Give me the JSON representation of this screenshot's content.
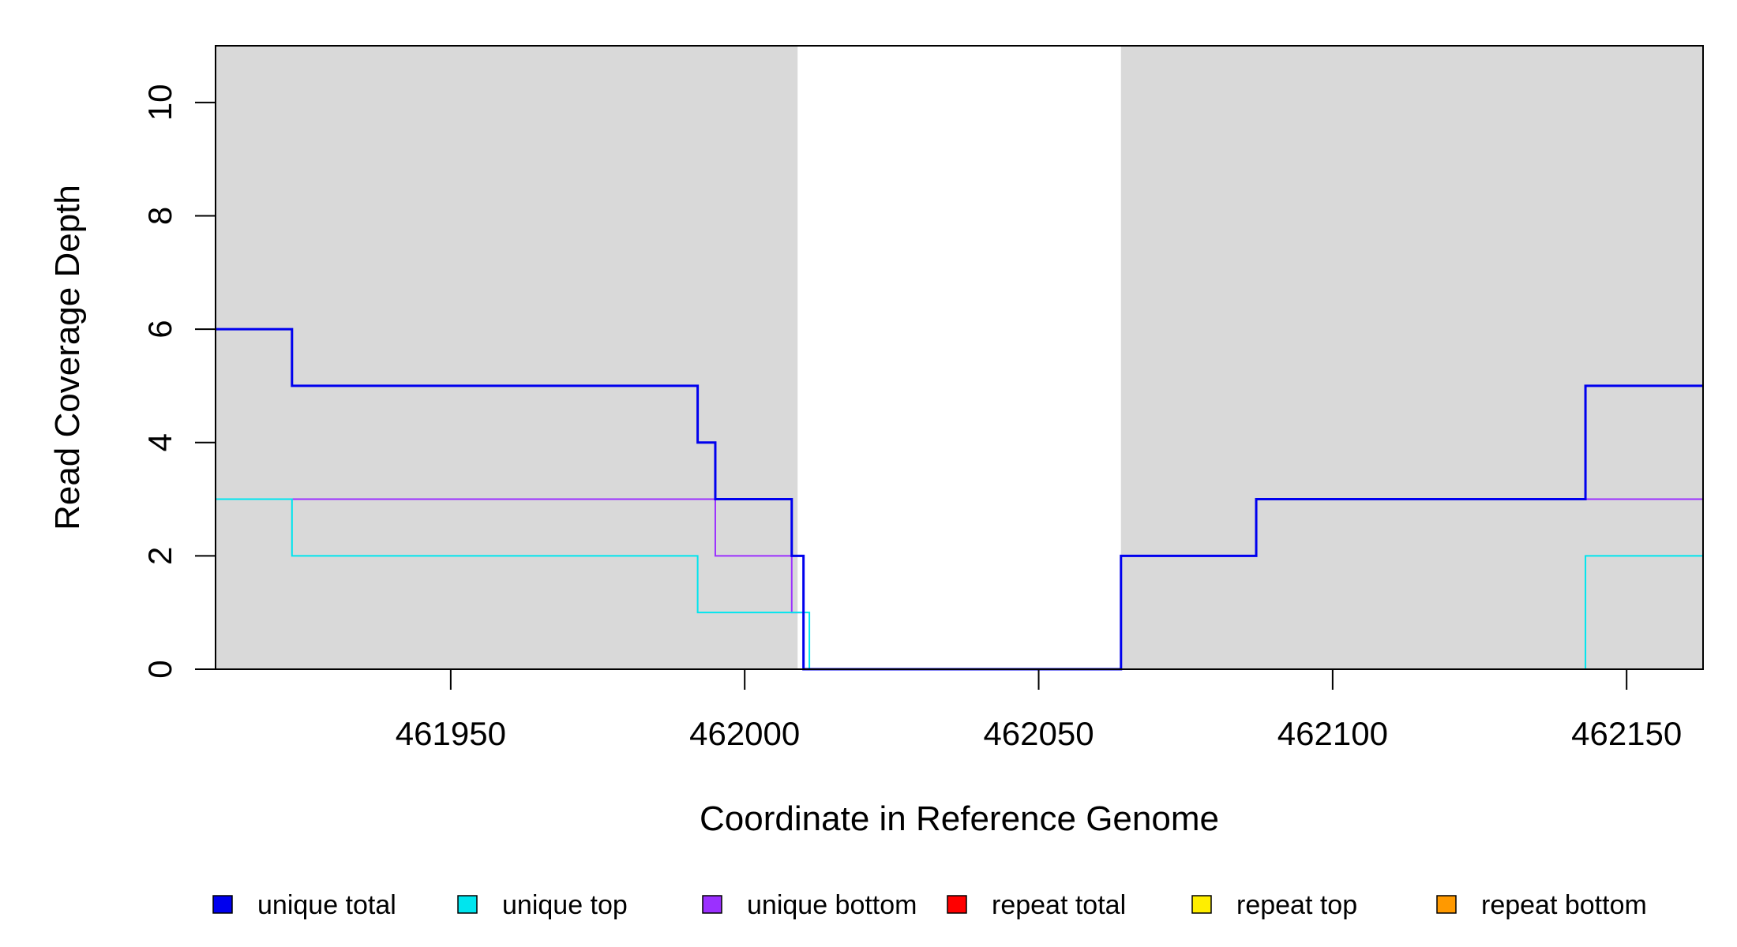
{
  "chart_data": {
    "type": "line",
    "xlabel": "Coordinate in Reference Genome",
    "ylabel": "Read Coverage Depth",
    "xlim": [
      461910,
      462163
    ],
    "ylim": [
      0,
      11
    ],
    "x_ticks": [
      461950,
      462000,
      462050,
      462100,
      462150
    ],
    "x_tick_labels": [
      "461950",
      "462000",
      "462050",
      "462100",
      "462150"
    ],
    "y_ticks": [
      0,
      2,
      4,
      6,
      8,
      10
    ],
    "y_tick_labels": [
      "0",
      "2",
      "4",
      "6",
      "8",
      "10"
    ],
    "grid": false,
    "legend_position": "bottom",
    "shaded_regions": [
      {
        "from": 461910,
        "to": 462009,
        "color": "#d9d9d9"
      },
      {
        "from": 462064,
        "to": 462163,
        "color": "#d9d9d9"
      }
    ],
    "series": [
      {
        "name": "unique total",
        "color": "#0000ee",
        "width": 3,
        "steps": [
          [
            461910,
            6
          ],
          [
            461923,
            5
          ],
          [
            461992,
            4
          ],
          [
            461995,
            3
          ],
          [
            462008,
            2
          ],
          [
            462010,
            0
          ],
          [
            462064,
            2
          ],
          [
            462087,
            3
          ],
          [
            462143,
            5
          ],
          [
            462163,
            5
          ]
        ]
      },
      {
        "name": "unique top",
        "color": "#00e5ee",
        "width": 2,
        "steps": [
          [
            461910,
            3
          ],
          [
            461923,
            2
          ],
          [
            461992,
            1
          ],
          [
            462011,
            0
          ],
          [
            462143,
            2
          ],
          [
            462163,
            2
          ]
        ]
      },
      {
        "name": "unique bottom",
        "color": "#9b30ff",
        "width": 2,
        "steps": [
          [
            461910,
            3
          ],
          [
            461995,
            2
          ],
          [
            462008,
            1
          ],
          [
            462010,
            0
          ],
          [
            462064,
            2
          ],
          [
            462087,
            3
          ],
          [
            462163,
            3
          ]
        ]
      },
      {
        "name": "repeat total",
        "color": "#ff0000",
        "width": 2,
        "steps": [
          [
            461910,
            0
          ],
          [
            462163,
            0
          ]
        ]
      },
      {
        "name": "repeat top",
        "color": "#ffee00",
        "width": 2,
        "steps": [
          [
            461910,
            0
          ],
          [
            462163,
            0
          ]
        ]
      },
      {
        "name": "repeat bottom",
        "color": "#ff9900",
        "width": 2,
        "steps": [
          [
            461910,
            0
          ],
          [
            462163,
            0
          ]
        ]
      }
    ]
  }
}
